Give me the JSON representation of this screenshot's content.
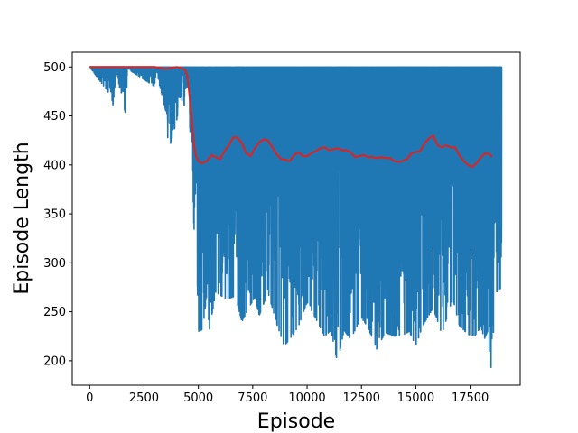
{
  "chart_data": {
    "type": "line",
    "title": "",
    "xlabel": "Episode",
    "ylabel": "Episode Length",
    "xlim": [
      -800,
      19800
    ],
    "ylim": [
      175,
      515
    ],
    "xticks": [
      0,
      2500,
      5000,
      7500,
      10000,
      12500,
      15000,
      17500
    ],
    "xtick_labels": [
      "0",
      "2500",
      "5000",
      "7500",
      "10000",
      "12500",
      "15000",
      "17500"
    ],
    "yticks": [
      200,
      250,
      300,
      350,
      400,
      450,
      500
    ],
    "ytick_labels": [
      "200",
      "250",
      "300",
      "350",
      "400",
      "450",
      "500"
    ],
    "grid": false,
    "legend": "none",
    "series": [
      {
        "role": "raw episode length",
        "color": "#1f77b4",
        "x_range": [
          0,
          18950
        ],
        "max": 500,
        "envelope_min": {
          "x": [
            0,
            1000,
            1100,
            1200,
            1650,
            1750,
            3000,
            3050,
            3500,
            3550,
            3600,
            3650,
            3700,
            4300,
            4350,
            4550,
            4600,
            4700,
            4750,
            4800,
            4850,
            5000,
            5200,
            5400,
            5500,
            5800,
            6300,
            6700,
            7000,
            7300,
            7600,
            7800,
            8200,
            8600,
            8950,
            9200,
            9600,
            10000,
            10400,
            10800,
            11100,
            11400,
            11700,
            12000,
            12500,
            12800,
            13200,
            13600,
            14000,
            14400,
            14700,
            15000,
            15300,
            15800,
            16200,
            16700,
            17000,
            17400,
            17700,
            18000,
            18150,
            18300,
            18450,
            18700,
            18950
          ],
          "y": [
            500,
            470,
            458,
            497,
            452,
            498,
            480,
            497,
            455,
            443,
            425,
            468,
            420,
            470,
            460,
            490,
            440,
            410,
            375,
            330,
            385,
            230,
            232,
            270,
            231,
            270,
            263,
            266,
            240,
            253,
            265,
            246,
            270,
            238,
            215,
            222,
            235,
            260,
            243,
            225,
            231,
            198,
            231,
            222,
            244,
            234,
            212,
            229,
            225,
            226,
            230,
            215,
            235,
            254,
            227,
            264,
            236,
            227,
            225,
            235,
            222,
            230,
            190,
            270,
            275
          ]
        }
      },
      {
        "role": "moving average",
        "color": "#d62728",
        "x": [
          0,
          1000,
          2000,
          3000,
          3500,
          4000,
          4200,
          4400,
          4500,
          4600,
          4700,
          4800,
          4900,
          5000,
          5100,
          5200,
          5400,
          5600,
          5800,
          6000,
          6200,
          6400,
          6600,
          6800,
          7000,
          7200,
          7400,
          7600,
          7800,
          8000,
          8200,
          8400,
          8600,
          8800,
          9000,
          9200,
          9400,
          9600,
          9800,
          10000,
          10200,
          10400,
          10600,
          10800,
          11000,
          11200,
          11400,
          11600,
          11800,
          12000,
          12200,
          12400,
          12600,
          12800,
          13000,
          13200,
          13400,
          13600,
          13800,
          14000,
          14200,
          14400,
          14600,
          14800,
          15000,
          15200,
          15400,
          15600,
          15800,
          16000,
          16200,
          16400,
          16600,
          16800,
          17000,
          17200,
          17400,
          17600,
          17800,
          18000,
          18200,
          18400,
          18500
        ],
        "y": [
          500,
          500,
          500,
          500,
          498,
          500,
          499,
          497,
          490,
          470,
          445,
          420,
          408,
          404,
          402,
          402,
          404,
          410,
          408,
          406,
          414,
          420,
          428,
          428,
          422,
          412,
          409,
          417,
          423,
          426,
          425,
          418,
          411,
          406,
          405,
          404,
          410,
          413,
          409,
          409,
          412,
          414,
          417,
          418,
          415,
          416,
          417,
          415,
          415,
          413,
          408,
          409,
          410,
          408,
          408,
          407,
          408,
          407,
          407,
          404,
          403,
          404,
          406,
          412,
          413,
          414,
          422,
          427,
          430,
          420,
          418,
          420,
          418,
          418,
          410,
          404,
          400,
          398,
          402,
          408,
          412,
          411,
          408
        ]
      }
    ]
  }
}
